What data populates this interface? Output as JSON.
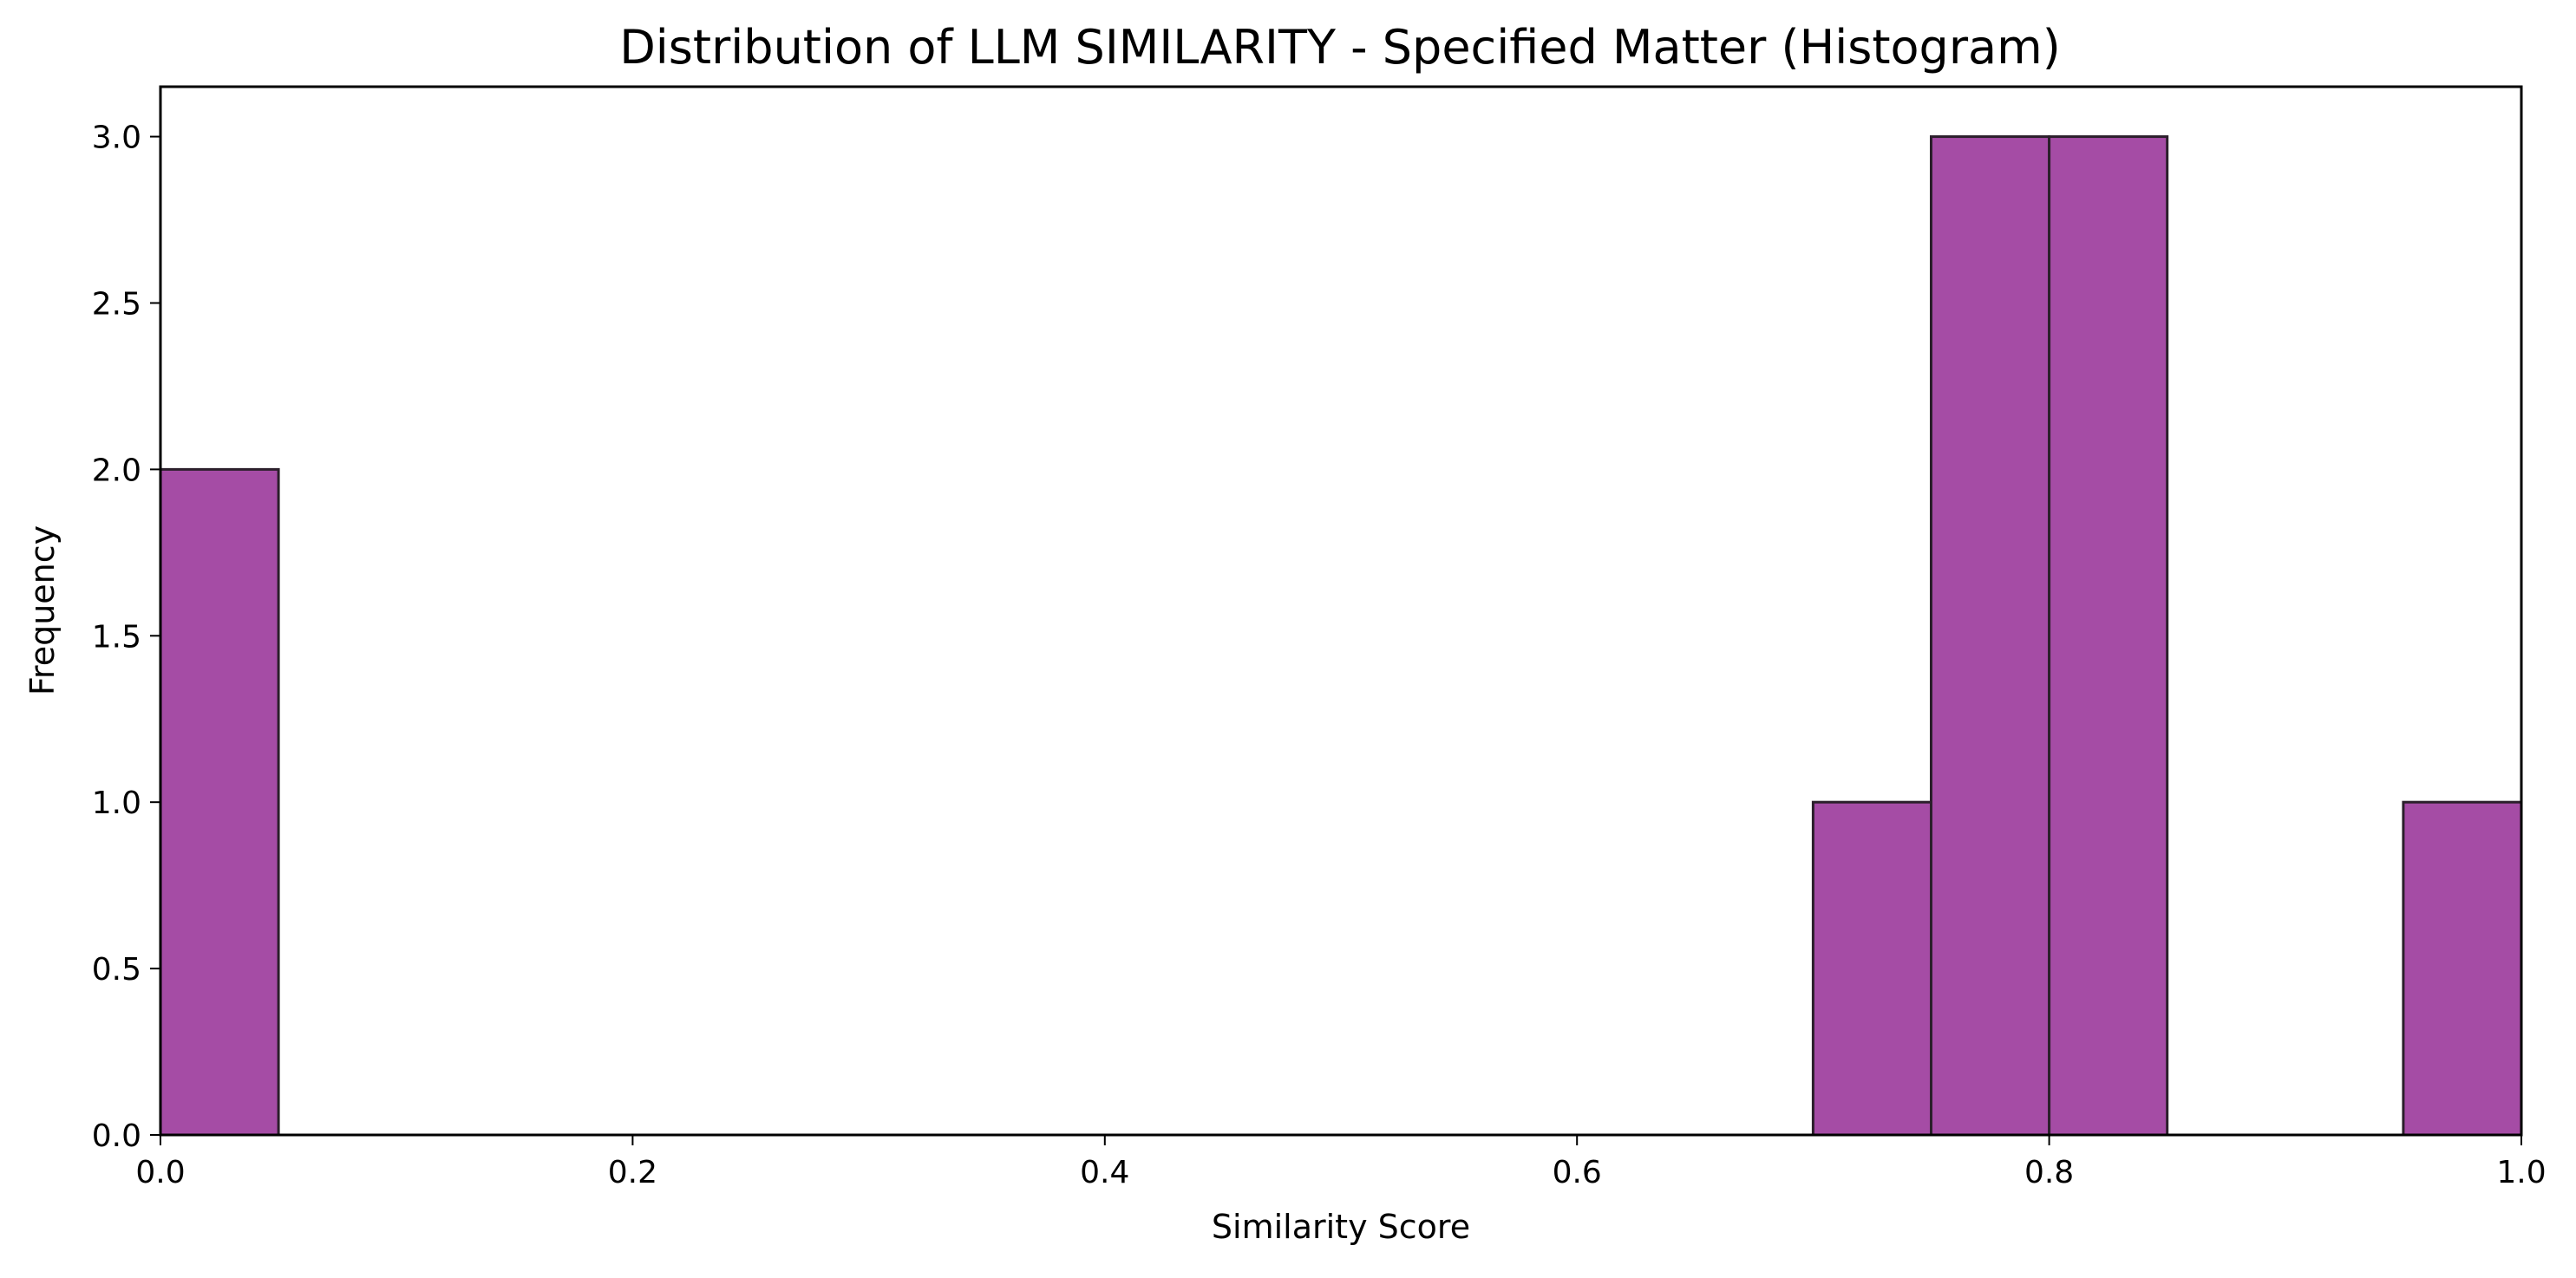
{
  "chart_data": {
    "type": "bar",
    "title": "Distribution of LLM SIMILARITY - Specified Matter (Histogram)",
    "xlabel": "Similarity Score",
    "ylabel": "Frequency",
    "xlim": [
      0.0,
      1.0
    ],
    "ylim": [
      0.0,
      3.15
    ],
    "bin_width": 0.05,
    "bins": [
      {
        "x0": 0.0,
        "x1": 0.05,
        "count": 2
      },
      {
        "x0": 0.7,
        "x1": 0.75,
        "count": 1
      },
      {
        "x0": 0.75,
        "x1": 0.8,
        "count": 3
      },
      {
        "x0": 0.8,
        "x1": 0.85,
        "count": 3
      },
      {
        "x0": 0.95,
        "x1": 1.0,
        "count": 1
      }
    ],
    "xticks": [
      0.0,
      0.2,
      0.4,
      0.6,
      0.8,
      1.0
    ],
    "xtick_labels": [
      "0.0",
      "0.2",
      "0.4",
      "0.6",
      "0.8",
      "1.0"
    ],
    "yticks": [
      0.0,
      0.5,
      1.0,
      1.5,
      2.0,
      2.5,
      3.0
    ],
    "ytick_labels": [
      "0.0",
      "0.5",
      "1.0",
      "1.5",
      "2.0",
      "2.5",
      "3.0"
    ],
    "grid": false,
    "legend": null,
    "colors": {
      "bar_fill": "#a54ca5",
      "bar_edge": "#2b1f2b",
      "axis": "#000000"
    }
  }
}
